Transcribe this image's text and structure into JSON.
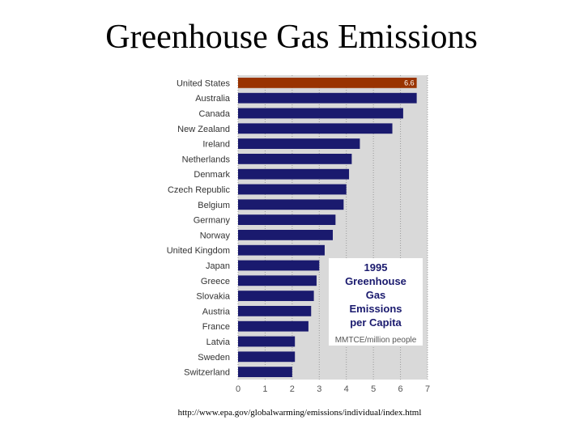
{
  "slide": {
    "title": "Greenhouse Gas Emissions",
    "source_url": "http://www.epa.gov/globalwarming/emissions/individual/index.html"
  },
  "chart_data": {
    "type": "bar",
    "orientation": "horizontal",
    "categories": [
      "United States",
      "Australia",
      "Canada",
      "New Zealand",
      "Ireland",
      "Netherlands",
      "Denmark",
      "Czech Republic",
      "Belgium",
      "Germany",
      "Norway",
      "United Kingdom",
      "Japan",
      "Greece",
      "Slovakia",
      "Austria",
      "France",
      "Latvia",
      "Sweden",
      "Switzerland"
    ],
    "values": [
      6.6,
      6.6,
      6.1,
      5.7,
      4.5,
      4.2,
      4.1,
      4.0,
      3.9,
      3.6,
      3.5,
      3.2,
      3.0,
      2.9,
      2.8,
      2.7,
      2.6,
      2.1,
      2.1,
      2.0
    ],
    "data_labels": [
      {
        "category": "United States",
        "text": "6.6"
      }
    ],
    "highlight": {
      "category": "United States",
      "color": "#993300"
    },
    "bar_color": "#1a1a6e",
    "xlim": [
      0,
      7
    ],
    "x_ticks": [
      "0",
      "1",
      "2",
      "3",
      "4",
      "5",
      "6",
      "7"
    ],
    "grid": true,
    "legend_box": {
      "title_lines": [
        "1995",
        "Greenhouse",
        "Gas",
        "Emissions",
        "per Capita"
      ],
      "unit": "MMTCE/million people"
    }
  }
}
